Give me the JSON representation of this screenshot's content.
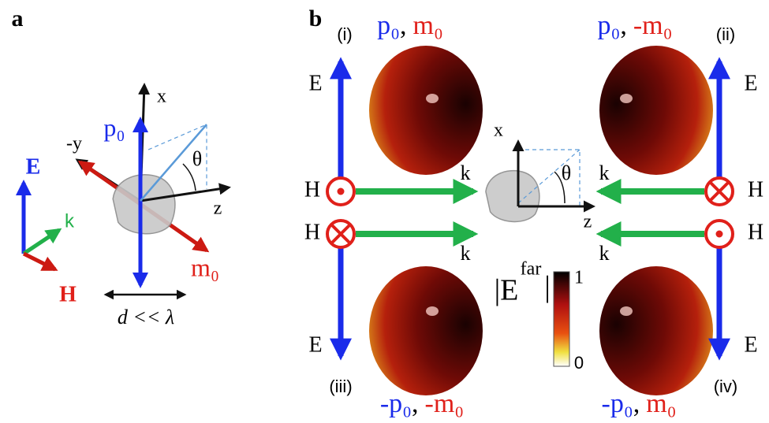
{
  "panel_a": {
    "label": "a",
    "axes": {
      "x": "x",
      "y": "-y",
      "z": "z"
    },
    "dipole": "p₀",
    "magnetic": "m₀",
    "angle": "θ",
    "size_note": "d << λ",
    "triad": {
      "e": "E",
      "k": "k",
      "h": "H"
    }
  },
  "panel_b": {
    "label": "b",
    "angle": "θ",
    "axes": {
      "x": "x",
      "z": "z"
    },
    "separator": ",",
    "states": [
      {
        "id": "(i)",
        "electric": "p₀",
        "magnetic": "m₀",
        "e": "E",
        "h": "H",
        "k": "k"
      },
      {
        "id": "(ii)",
        "electric": "p₀",
        "magnetic": "-m₀",
        "e": "E",
        "h": "H",
        "k": "k"
      },
      {
        "id": "(iii)",
        "electric": "-p₀",
        "magnetic": "-m₀",
        "e": "E",
        "h": "H",
        "k": "k"
      },
      {
        "id": "(iv)",
        "electric": "-p₀",
        "magnetic": "m₀",
        "e": "E",
        "h": "H",
        "k": "k"
      }
    ],
    "colorbar": {
      "symbol": "|E",
      "superscript": "far",
      "closing": "|",
      "max": "1",
      "min": "0"
    }
  }
}
